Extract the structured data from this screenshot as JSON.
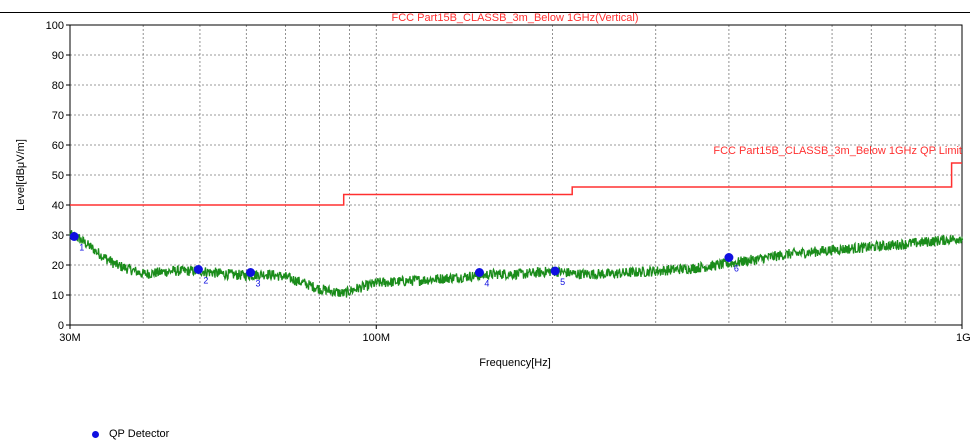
{
  "chart_data": {
    "type": "line",
    "title": "FCC Part15B_CLASSB_3m_Below 1GHz(Vertical)",
    "xlabel": "Frequency[Hz]",
    "ylabel": "Level[dBμV/m]",
    "xscale": "log",
    "xlim": [
      30000000,
      1000000000
    ],
    "ylim": [
      0,
      100
    ],
    "grid": true,
    "x_tick_labels": [
      {
        "value": 30000000,
        "label": "30M"
      },
      {
        "value": 100000000,
        "label": "100M"
      },
      {
        "value": 1000000000,
        "label": "1G"
      }
    ],
    "y_ticks": [
      0,
      10,
      20,
      30,
      40,
      50,
      60,
      70,
      80,
      90,
      100
    ],
    "series": [
      {
        "name": "FCC Part15B_CLASSB_3m_Below 1GHz QP Limit",
        "color": "#ff3030",
        "step": true,
        "x": [
          30000000,
          88000000,
          88000000,
          216000000,
          216000000,
          960000000,
          960000000,
          1000000000
        ],
        "y": [
          40,
          40,
          43.5,
          43.5,
          46,
          46,
          54,
          54
        ]
      },
      {
        "name": "",
        "color": "#1a8c1a",
        "x": [
          30000000,
          31000000,
          32000000,
          34000000,
          36000000,
          40000000,
          45000000,
          50000000,
          55000000,
          60000000,
          65000000,
          70000000,
          75000000,
          80000000,
          85000000,
          88000000,
          92000000,
          96000000,
          100000000,
          110000000,
          120000000,
          140000000,
          160000000,
          180000000,
          200000000,
          220000000,
          250000000,
          300000000,
          350000000,
          400000000,
          450000000,
          500000000,
          600000000,
          700000000,
          800000000,
          900000000,
          1000000000
        ],
        "y": [
          30,
          29,
          27,
          23,
          20,
          17,
          18,
          18,
          17,
          16.5,
          17,
          16,
          14,
          12,
          11,
          10.5,
          12,
          13,
          14,
          14.5,
          15,
          16,
          17,
          17,
          18,
          17,
          17,
          18,
          19,
          20.5,
          22,
          23.5,
          25,
          26,
          27,
          28,
          29
        ]
      }
    ],
    "points": [
      {
        "name": "QP Detector",
        "color": "#1010e0",
        "x": [
          30500000,
          49700000,
          61000000,
          150000000,
          202000000,
          400000000
        ],
        "y": [
          29.5,
          18.5,
          17.5,
          17.5,
          18,
          22.5
        ],
        "labels": [
          "1",
          "2",
          "3",
          "4",
          "5",
          "6"
        ]
      }
    ],
    "annotations": [
      {
        "text": "FCC Part15B_CLASSB_3m_Below 1GHz QP Limit",
        "color": "#ff3030"
      }
    ],
    "legend": [
      {
        "label": "QP Detector",
        "marker": "dot",
        "color": "#1010e0"
      }
    ]
  }
}
